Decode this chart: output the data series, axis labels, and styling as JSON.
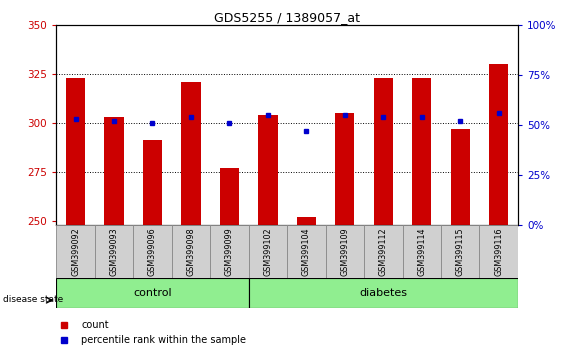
{
  "title": "GDS5255 / 1389057_at",
  "samples": [
    "GSM399092",
    "GSM399093",
    "GSM399096",
    "GSM399098",
    "GSM399099",
    "GSM399102",
    "GSM399104",
    "GSM399109",
    "GSM399112",
    "GSM399114",
    "GSM399115",
    "GSM399116"
  ],
  "count_values": [
    323,
    303,
    291,
    321,
    277,
    304,
    252,
    305,
    323,
    323,
    297,
    330
  ],
  "percentile_values": [
    53,
    52,
    51,
    54,
    51,
    55,
    47,
    55,
    54,
    54,
    52,
    56
  ],
  "group_labels": [
    "control",
    "diabetes"
  ],
  "group_sizes": [
    5,
    7
  ],
  "bar_color": "#CC0000",
  "dot_color": "#0000CC",
  "ylim_left": [
    248,
    350
  ],
  "ylim_right": [
    0,
    100
  ],
  "yticks_left": [
    250,
    275,
    300,
    325,
    350
  ],
  "yticks_right": [
    0,
    25,
    50,
    75,
    100
  ],
  "ytick_labels_right": [
    "0%",
    "25%",
    "50%",
    "75%",
    "100%"
  ],
  "background_color": "#ffffff",
  "label_count": "count",
  "label_percentile": "percentile rank within the sample",
  "left_tick_color": "#CC0000",
  "right_tick_color": "#0000CC"
}
